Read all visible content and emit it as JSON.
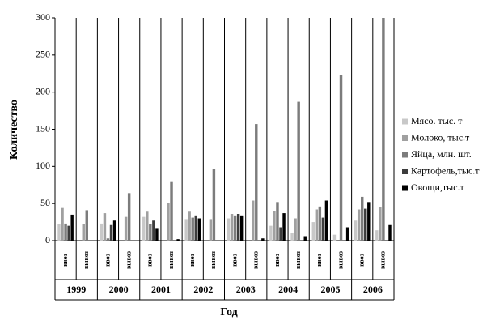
{
  "chart_data": {
    "type": "bar",
    "x_label": "Год",
    "y_label": "Количество",
    "groups": [
      "1999",
      "2000",
      "2001",
      "2002",
      "2003",
      "2004",
      "2005",
      "2006"
    ],
    "categories": [
      "ввоз",
      "вывоз",
      "ввоз",
      "вывоз",
      "ввоз",
      "вывоз",
      "ввоз",
      "вывоз",
      "ввоз",
      "вывоз",
      "ввоз",
      "вывоз",
      "ввоз",
      "вывоз",
      "ввоз",
      "вывоз"
    ],
    "series": [
      {
        "name": "Мясо. тыс. т",
        "color": "#c8c8c8",
        "values": [
          22,
          0,
          23,
          0,
          32,
          0,
          29,
          0,
          30,
          0,
          20,
          10,
          25,
          8,
          27,
          14
        ]
      },
      {
        "name": "Молоко, тыс.т",
        "color": "#a0a0a0",
        "values": [
          44,
          22,
          37,
          32,
          39,
          51,
          39,
          29,
          36,
          54,
          40,
          30,
          42,
          0,
          42,
          45
        ]
      },
      {
        "name": "Яйца, млн. шт.",
        "color": "#7c7c7c",
        "values": [
          23,
          41,
          3,
          64,
          22,
          80,
          31,
          96,
          34,
          157,
          52,
          187,
          46,
          223,
          59,
          300
        ]
      },
      {
        "name": "Картофель,тыс.т",
        "color": "#3c3c3c",
        "values": [
          20,
          0,
          21,
          0,
          27,
          0,
          34,
          0,
          36,
          0,
          18,
          0,
          31,
          0,
          43,
          0
        ]
      },
      {
        "name": "Овощи,тыс.т",
        "color": "#000000",
        "values": [
          35,
          0,
          27,
          0,
          17,
          2,
          30,
          0,
          34,
          3,
          37,
          6,
          54,
          18,
          52,
          21
        ]
      }
    ],
    "ylim": [
      0,
      300
    ],
    "yticks": [
      0,
      50,
      100,
      150,
      200,
      250,
      300
    ],
    "legend": "right"
  }
}
